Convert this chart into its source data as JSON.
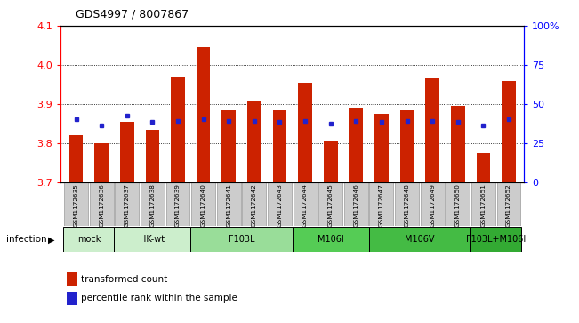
{
  "title": "GDS4997 / 8007867",
  "samples": [
    "GSM1172635",
    "GSM1172636",
    "GSM1172637",
    "GSM1172638",
    "GSM1172639",
    "GSM1172640",
    "GSM1172641",
    "GSM1172642",
    "GSM1172643",
    "GSM1172644",
    "GSM1172645",
    "GSM1172646",
    "GSM1172647",
    "GSM1172648",
    "GSM1172649",
    "GSM1172650",
    "GSM1172651",
    "GSM1172652"
  ],
  "bar_values": [
    3.82,
    3.8,
    3.855,
    3.835,
    3.97,
    4.045,
    3.885,
    3.91,
    3.885,
    3.955,
    3.805,
    3.89,
    3.875,
    3.885,
    3.965,
    3.895,
    3.775,
    3.96
  ],
  "blue_values": [
    3.862,
    3.845,
    3.87,
    3.855,
    3.858,
    3.862,
    3.858,
    3.858,
    3.855,
    3.858,
    3.85,
    3.858,
    3.855,
    3.858,
    3.858,
    3.855,
    3.845,
    3.862
  ],
  "bar_color": "#cc2200",
  "blue_color": "#2222cc",
  "ylim_left": [
    3.7,
    4.1
  ],
  "ylim_right": [
    0,
    100
  ],
  "yticks_left": [
    3.7,
    3.8,
    3.9,
    4.0,
    4.1
  ],
  "yticks_right": [
    0,
    25,
    50,
    75,
    100
  ],
  "ytick_labels_right": [
    "0",
    "25",
    "50",
    "75",
    "100%"
  ],
  "bar_width": 0.55,
  "groups": [
    {
      "label": "mock",
      "indices": [
        0,
        1
      ],
      "color": "#cceecc"
    },
    {
      "label": "HK-wt",
      "indices": [
        2,
        3,
        4
      ],
      "color": "#cceecc"
    },
    {
      "label": "F103L",
      "indices": [
        5,
        6,
        7,
        8
      ],
      "color": "#99dd99"
    },
    {
      "label": "M106I",
      "indices": [
        9,
        10,
        11
      ],
      "color": "#55cc55"
    },
    {
      "label": "M106V",
      "indices": [
        12,
        13,
        14,
        15
      ],
      "color": "#44bb44"
    },
    {
      "label": "F103L+M106I",
      "indices": [
        16,
        17
      ],
      "color": "#33aa33"
    }
  ],
  "sample_box_color": "#cccccc",
  "sample_box_edge": "#999999"
}
